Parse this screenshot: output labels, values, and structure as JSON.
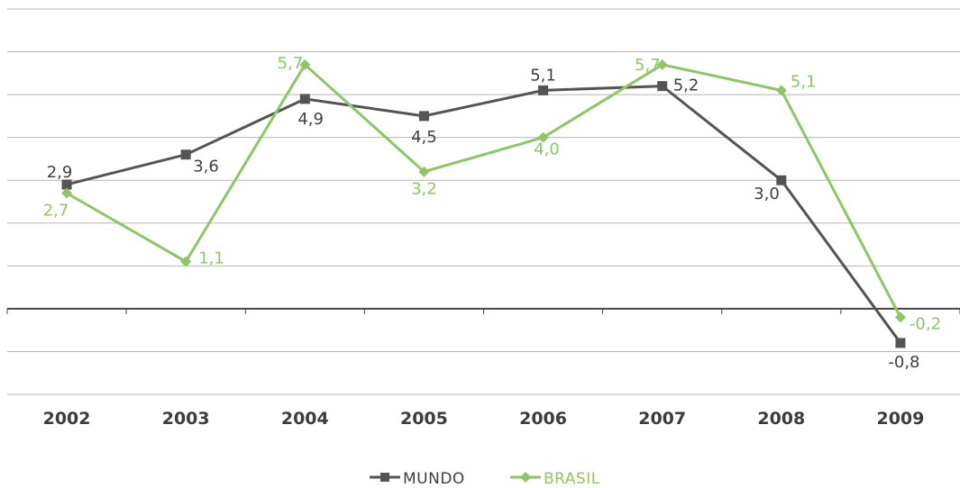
{
  "chart_data": {
    "type": "line",
    "categories": [
      "2002",
      "2003",
      "2004",
      "2005",
      "2006",
      "2007",
      "2008",
      "2009"
    ],
    "ylim": [
      -2,
      7
    ],
    "grid": true,
    "legend_position": "bottom-center",
    "series": [
      {
        "name": "MUNDO",
        "values": [
          2.9,
          3.6,
          4.9,
          4.5,
          5.1,
          5.2,
          3.0,
          -0.8
        ],
        "labels": [
          "2,9",
          "3,6",
          "4,9",
          "4,5",
          "5,1",
          "5,2",
          "3,0",
          "-0,8"
        ],
        "color": "#545454",
        "marker": "square"
      },
      {
        "name": "BRASIL",
        "values": [
          2.7,
          1.1,
          5.7,
          3.2,
          4.0,
          5.7,
          5.1,
          -0.2
        ],
        "labels": [
          "2,7",
          "1,1",
          "5,7",
          "3,2",
          "4,0",
          "5,7",
          "5,1",
          "-0,2"
        ],
        "color": "#8cc665",
        "marker": "diamond"
      }
    ]
  }
}
